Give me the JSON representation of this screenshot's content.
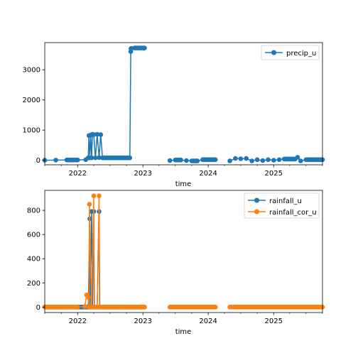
{
  "chart_data": [
    {
      "type": "line",
      "xlabel": "time",
      "ylabel": "",
      "xlim": [
        "2021-07-01",
        "2025-10-01"
      ],
      "ylim": [
        -150,
        3900
      ],
      "yticks": [
        0,
        1000,
        2000,
        3000
      ],
      "xticks": [
        "2022",
        "2023",
        "2024",
        "2025"
      ],
      "legend_position": "top-right",
      "grid": false,
      "series": [
        {
          "name": "precip_u",
          "color": "#1f77b4",
          "marker": "circle",
          "segments": [
            {
              "x": [
                "2021-07-01",
                "2021-09-01",
                "2021-11-01",
                "2022-01-01",
                "2022-02-15",
                "2022-03-01",
                "2022-03-05",
                "2022-03-10",
                "2022-03-15",
                "2022-03-20",
                "2022-03-25",
                "2022-04-01",
                "2022-04-10",
                "2022-04-20",
                "2022-05-01",
                "2022-05-10",
                "2022-05-20",
                "2022-06-15",
                "2022-08-01",
                "2022-09-15",
                "2022-10-20",
                "2022-10-25",
                "2022-10-26",
                "2022-10-28",
                "2022-11-15",
                "2022-12-15",
                "2023-01-10"
              ],
              "y": [
                0,
                5,
                10,
                10,
                20,
                80,
                820,
                80,
                840,
                80,
                860,
                850,
                80,
                860,
                90,
                850,
                80,
                80,
                80,
                80,
                80,
                3600,
                3700,
                3710,
                3720,
                3720,
                3720
              ]
            },
            {
              "x": [
                "2023-06-01",
                "2023-07-01",
                "2023-08-01",
                "2023-09-01",
                "2023-10-01",
                "2023-11-01",
                "2023-12-01",
                "2024-01-01",
                "2024-02-10"
              ],
              "y": [
                -10,
                10,
                10,
                -10,
                -20,
                -20,
                20,
                20,
                20
              ]
            },
            {
              "x": [
                "2024-05-01",
                "2024-06-01",
                "2024-07-01",
                "2024-08-01",
                "2024-09-01",
                "2024-10-01",
                "2024-11-01",
                "2024-12-01",
                "2025-01-01",
                "2025-02-01",
                "2025-03-01",
                "2025-04-01",
                "2025-05-01",
                "2025-05-15",
                "2025-06-01",
                "2025-07-01",
                "2025-08-01",
                "2025-09-01",
                "2025-10-01"
              ],
              "y": [
                -20,
                60,
                50,
                60,
                -20,
                20,
                -10,
                20,
                0,
                20,
                40,
                40,
                40,
                100,
                -20,
                20,
                20,
                20,
                20
              ]
            }
          ]
        }
      ]
    },
    {
      "type": "line",
      "xlabel": "time",
      "ylabel": "",
      "xlim": [
        "2021-07-01",
        "2025-10-01"
      ],
      "ylim": [
        -45,
        965
      ],
      "yticks": [
        0,
        200,
        400,
        600,
        800
      ],
      "xticks": [
        "2022",
        "2023",
        "2024",
        "2025"
      ],
      "legend_position": "top-right",
      "grid": false,
      "series": [
        {
          "name": "rainfall_u",
          "color": "#1f77b4",
          "marker": "circle",
          "segments": [
            {
              "x": [
                "2021-07-01",
                "2021-10-01",
                "2022-01-01",
                "2022-02-15",
                "2022-03-01",
                "2022-03-10",
                "2022-03-12",
                "2022-03-20",
                "2022-03-25",
                "2022-04-01",
                "2022-04-05",
                "2022-04-20",
                "2022-05-01",
                "2022-05-05",
                "2022-08-01",
                "2022-11-01",
                "2023-01-10"
              ],
              "y": [
                0,
                0,
                0,
                0,
                0,
                730,
                0,
                790,
                0,
                790,
                0,
                0,
                790,
                0,
                0,
                0,
                0
              ]
            }
          ]
        },
        {
          "name": "rainfall_cor_u",
          "color": "#ff7f0e",
          "marker": "circle",
          "segments": [
            {
              "x": [
                "2021-07-01",
                "2021-10-01",
                "2022-01-01",
                "2022-02-10",
                "2022-02-20",
                "2022-03-01",
                "2022-03-05",
                "2022-03-08",
                "2022-03-20",
                "2022-04-01",
                "2022-04-03",
                "2022-04-20",
                "2022-05-01",
                "2022-05-03",
                "2022-08-01",
                "2022-11-01",
                "2023-01-10"
              ],
              "y": [
                0,
                0,
                0,
                5,
                100,
                80,
                0,
                850,
                0,
                920,
                0,
                0,
                920,
                0,
                0,
                0,
                0
              ]
            },
            {
              "x": [
                "2023-06-01",
                "2023-09-01",
                "2023-12-01",
                "2024-02-10"
              ],
              "y": [
                0,
                0,
                0,
                0
              ]
            },
            {
              "x": [
                "2024-05-01",
                "2024-09-01",
                "2025-01-01",
                "2025-05-01",
                "2025-10-01"
              ],
              "y": [
                0,
                0,
                0,
                0,
                0
              ]
            }
          ]
        }
      ]
    }
  ]
}
